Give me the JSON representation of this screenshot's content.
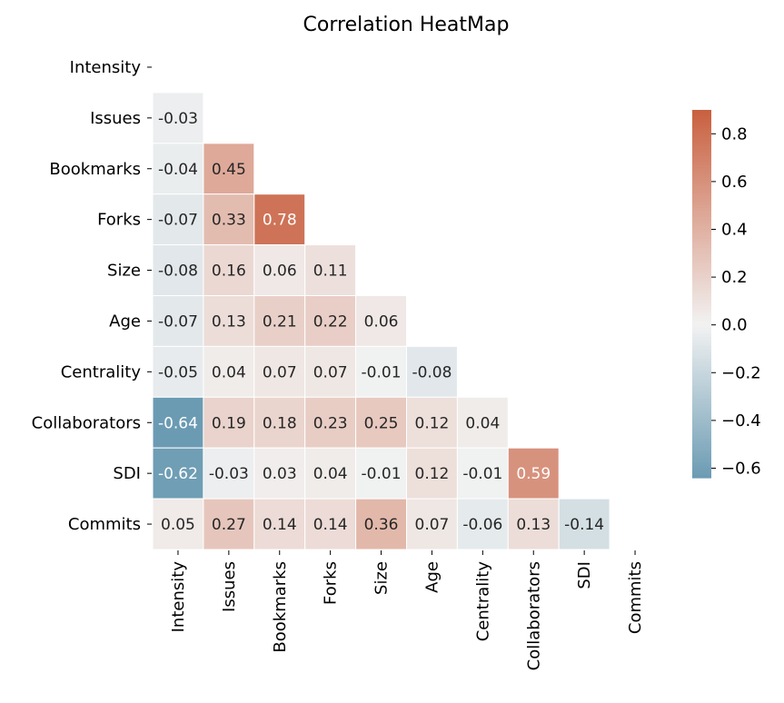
{
  "chart_data": {
    "type": "heatmap",
    "title": "Correlation HeatMap",
    "xlabel": "",
    "ylabel": "",
    "variables": [
      "Intensity",
      "Issues",
      "Bookmarks",
      "Forks",
      "Size",
      "Age",
      "Centrality",
      "Collaborators",
      "SDI",
      "Commits"
    ],
    "mask": "upper-triangle-including-diagonal",
    "values": [
      [
        null,
        null,
        null,
        null,
        null,
        null,
        null,
        null,
        null,
        null
      ],
      [
        -0.03,
        null,
        null,
        null,
        null,
        null,
        null,
        null,
        null,
        null
      ],
      [
        -0.04,
        0.45,
        null,
        null,
        null,
        null,
        null,
        null,
        null,
        null
      ],
      [
        -0.07,
        0.33,
        0.78,
        null,
        null,
        null,
        null,
        null,
        null,
        null
      ],
      [
        -0.08,
        0.16,
        0.06,
        0.11,
        null,
        null,
        null,
        null,
        null,
        null
      ],
      [
        -0.07,
        0.13,
        0.21,
        0.22,
        0.06,
        null,
        null,
        null,
        null,
        null
      ],
      [
        -0.05,
        0.04,
        0.07,
        0.07,
        -0.01,
        -0.08,
        null,
        null,
        null,
        null
      ],
      [
        -0.64,
        0.19,
        0.18,
        0.23,
        0.25,
        0.12,
        0.04,
        null,
        null,
        null
      ],
      [
        -0.62,
        -0.03,
        0.03,
        0.04,
        -0.01,
        0.12,
        -0.01,
        0.59,
        null,
        null
      ],
      [
        0.05,
        0.27,
        0.14,
        0.14,
        0.36,
        0.07,
        -0.06,
        0.13,
        -0.14,
        null
      ]
    ],
    "labels": [
      [
        null,
        null,
        null,
        null,
        null,
        null,
        null,
        null,
        null,
        null
      ],
      [
        "-0.03",
        null,
        null,
        null,
        null,
        null,
        null,
        null,
        null,
        null
      ],
      [
        "-0.04",
        "0.45",
        null,
        null,
        null,
        null,
        null,
        null,
        null,
        null
      ],
      [
        "-0.07",
        "0.33",
        "0.78",
        null,
        null,
        null,
        null,
        null,
        null,
        null
      ],
      [
        "-0.08",
        "0.16",
        "0.06",
        "0.11",
        null,
        null,
        null,
        null,
        null,
        null
      ],
      [
        "-0.07",
        "0.13",
        "0.21",
        "0.22",
        "0.06",
        null,
        null,
        null,
        null,
        null
      ],
      [
        "-0.05",
        "0.04",
        "0.07",
        "0.07",
        "-0.01",
        "-0.08",
        null,
        null,
        null,
        null
      ],
      [
        "-0.64",
        "0.19",
        "0.18",
        "0.23",
        "0.25",
        "0.12",
        "0.04",
        null,
        null,
        null
      ],
      [
        "-0.62",
        "-0.03",
        "0.03",
        "0.04",
        "-0.01",
        "0.12",
        "-0.01",
        "0.59",
        null,
        null
      ],
      [
        "0.05",
        "0.27",
        "0.14",
        "0.14",
        "0.36",
        "0.07",
        "-0.06",
        "0.13",
        "-0.14",
        null
      ]
    ],
    "colorbar": {
      "vmin": -0.64,
      "vmax": 0.9,
      "ticks": [
        0.8,
        0.6,
        0.4,
        0.2,
        0.0,
        -0.2,
        -0.4,
        -0.6
      ],
      "tick_labels": [
        "0.8",
        "0.6",
        "0.4",
        "0.2",
        "0.0",
        "−0.2",
        "−0.4",
        "−0.6"
      ],
      "placement": "right"
    },
    "colors": {
      "negative": "#6b9bb3",
      "neutral": "#f2f2f2",
      "positive": "#c9603f"
    }
  }
}
